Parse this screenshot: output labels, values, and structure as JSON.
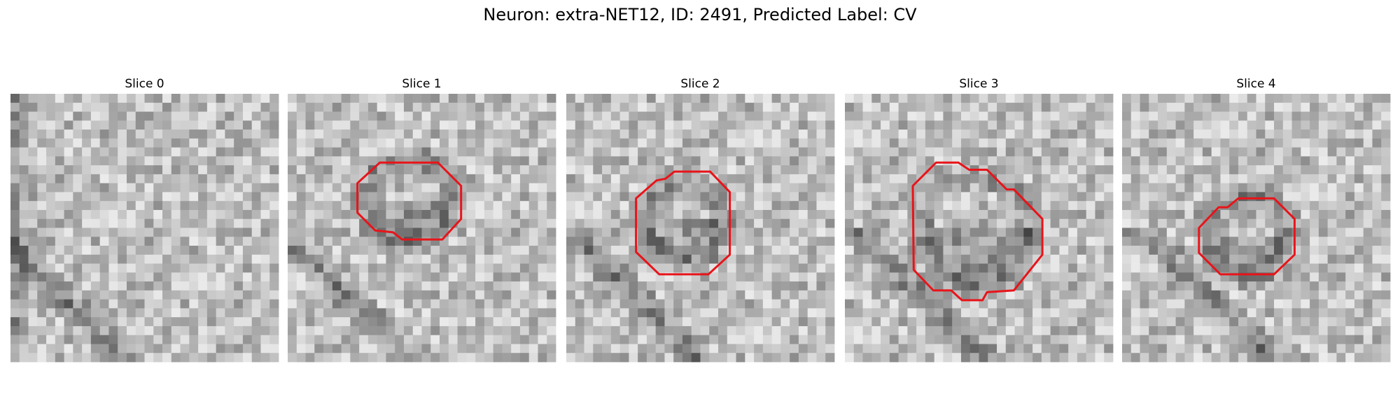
{
  "title": "Neuron: extra-NET12, ID: 2491, Predicted Label: CV",
  "panels": [
    {
      "title": "Slice 0"
    },
    {
      "title": "Slice 1"
    },
    {
      "title": "Slice 2"
    },
    {
      "title": "Slice 3"
    },
    {
      "title": "Slice 4"
    }
  ]
}
